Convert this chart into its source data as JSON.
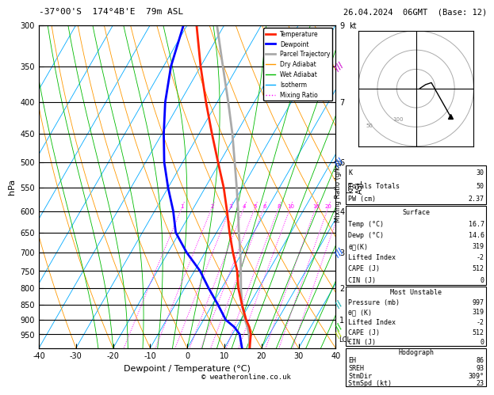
{
  "title_left": "-37°00'S  174°4B'E  79m ASL",
  "title_right": "26.04.2024  06GMT  (Base: 12)",
  "xlabel": "Dewpoint / Temperature (°C)",
  "ylabel_left": "hPa",
  "temp_min": -40,
  "temp_max": 40,
  "p_min": 300,
  "p_max": 1000,
  "isotherm_color": "#00aaff",
  "dry_adiabat_color": "#ff9900",
  "wet_adiabat_color": "#00bb00",
  "mixing_ratio_color": "#ff00ff",
  "temp_color": "#ff2200",
  "dewp_color": "#0000ff",
  "parcel_color": "#aaaaaa",
  "legend_items": [
    {
      "label": "Temperature",
      "color": "#ff2200",
      "lw": 2,
      "ls": "-"
    },
    {
      "label": "Dewpoint",
      "color": "#0000ff",
      "lw": 2,
      "ls": "-"
    },
    {
      "label": "Parcel Trajectory",
      "color": "#aaaaaa",
      "lw": 2,
      "ls": "-"
    },
    {
      "label": "Dry Adiabat",
      "color": "#ff9900",
      "lw": 1,
      "ls": "-"
    },
    {
      "label": "Wet Adiabat",
      "color": "#00bb00",
      "lw": 1,
      "ls": "-"
    },
    {
      "label": "Isotherm",
      "color": "#00aaff",
      "lw": 1,
      "ls": "-"
    },
    {
      "label": "Mixing Ratio",
      "color": "#ff00ff",
      "lw": 1,
      "ls": ":"
    }
  ],
  "K": "30",
  "Totals_Totals": "50",
  "PW_cm": "2.37",
  "surf_temp": "16.7",
  "surf_dewp": "14.6",
  "surf_thetae": "319",
  "surf_li": "-2",
  "surf_cape": "512",
  "surf_cin": "0",
  "mu_pres": "997",
  "mu_thetae": "319",
  "mu_li": "-2",
  "mu_cape": "512",
  "mu_cin": "0",
  "hodo_eh": "86",
  "hodo_sreh": "93",
  "hodo_stmdir": "309°",
  "hodo_stmspd": "23",
  "copyright": "© weatheronline.co.uk",
  "temperature_profile": {
    "pressure": [
      997,
      950,
      925,
      900,
      850,
      800,
      750,
      700,
      650,
      600,
      550,
      500,
      450,
      400,
      350,
      300
    ],
    "temp": [
      16.7,
      15.0,
      13.5,
      11.5,
      8.0,
      4.5,
      1.5,
      -2.5,
      -6.5,
      -10.5,
      -15.0,
      -20.5,
      -26.5,
      -33.0,
      -40.0,
      -47.5
    ]
  },
  "dewpoint_profile": {
    "pressure": [
      997,
      950,
      925,
      900,
      850,
      800,
      750,
      700,
      650,
      600,
      550,
      500,
      450,
      400,
      350,
      300
    ],
    "dewp": [
      14.6,
      12.0,
      9.5,
      6.0,
      1.5,
      -3.5,
      -8.5,
      -15.0,
      -21.0,
      -25.0,
      -30.0,
      -35.0,
      -39.5,
      -44.0,
      -48.0,
      -51.0
    ]
  },
  "parcel_profile": {
    "pressure": [
      997,
      950,
      925,
      900,
      850,
      800,
      750,
      700,
      650,
      600,
      550,
      500,
      450,
      400,
      350,
      300
    ],
    "temp": [
      16.7,
      14.5,
      13.0,
      11.2,
      8.0,
      5.2,
      2.5,
      -0.5,
      -4.0,
      -7.5,
      -11.5,
      -16.0,
      -21.0,
      -27.0,
      -34.0,
      -42.0
    ]
  }
}
